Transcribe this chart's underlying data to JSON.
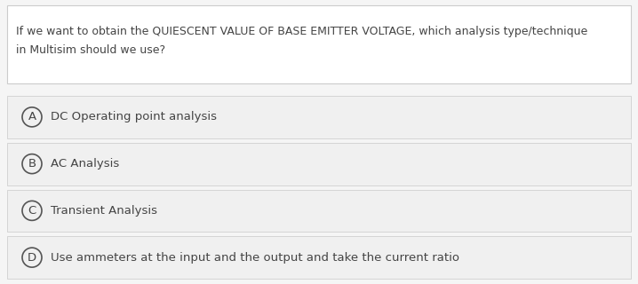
{
  "question": "If we want to obtain the QUIESCENT VALUE OF BASE EMITTER VOLTAGE, which analysis type/technique\nin Multisim should we use?",
  "options": [
    {
      "label": "A",
      "text": "DC Operating point analysis"
    },
    {
      "label": "B",
      "text": "AC Analysis"
    },
    {
      "label": "C",
      "text": "Transient Analysis"
    },
    {
      "label": "D",
      "text": "Use ammeters at the input and the output and take the current ratio"
    }
  ],
  "bg_color": "#f5f5f5",
  "question_box_color": "#ffffff",
  "question_box_edge": "#cccccc",
  "option_box_color": "#f0f0f0",
  "option_box_edge": "#d0d0d0",
  "text_color": "#444444",
  "circle_edge_color": "#555555",
  "circle_fill_color": "#f0f0f0",
  "font_size_question": 9.0,
  "font_size_option": 9.5,
  "font_size_label": 9.5,
  "fig_width": 7.18,
  "fig_height": 3.2,
  "dpi": 100
}
